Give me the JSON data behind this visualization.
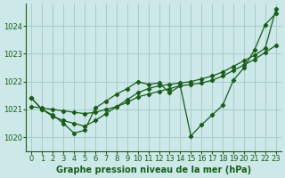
{
  "title": "Graphe pression niveau de la mer (hPa)",
  "bg_color": "#cce8e8",
  "grid_color": "#aacccc",
  "line_color": "#1a5c1a",
  "xlim": [
    -0.5,
    23.5
  ],
  "ylim": [
    1019.5,
    1024.8
  ],
  "yticks": [
    1020,
    1021,
    1022,
    1023,
    1024
  ],
  "xticks": [
    0,
    1,
    2,
    3,
    4,
    5,
    6,
    7,
    8,
    9,
    10,
    11,
    12,
    13,
    14,
    15,
    16,
    17,
    18,
    19,
    20,
    21,
    22,
    23
  ],
  "series": [
    {
      "x": [
        0,
        1,
        2,
        3,
        4,
        5,
        6,
        7,
        8,
        9,
        10,
        11,
        12,
        13,
        14,
        15,
        16,
        17,
        18,
        19,
        20,
        21,
        22,
        23
      ],
      "y": [
        1021.4,
        1021.0,
        1020.8,
        1020.5,
        1020.15,
        1020.25,
        1021.05,
        1021.3,
        1021.55,
        1021.75,
        1022.0,
        1021.9,
        1021.95,
        1021.6,
        1021.85,
        1020.05,
        1020.45,
        1020.8,
        1021.15,
        1022.05,
        1022.5,
        1023.15,
        1024.05,
        1024.45
      ],
      "marker": "D"
    },
    {
      "x": [
        0,
        1,
        2,
        3,
        4,
        5,
        6,
        7,
        8,
        9,
        10,
        11,
        12,
        13,
        14,
        15,
        16,
        17,
        18,
        19,
        20,
        21,
        22,
        23
      ],
      "y": [
        1021.1,
        1021.05,
        1021.0,
        1020.95,
        1020.9,
        1020.85,
        1020.9,
        1021.0,
        1021.1,
        1021.25,
        1021.45,
        1021.55,
        1021.65,
        1021.75,
        1021.85,
        1021.9,
        1021.95,
        1022.05,
        1022.2,
        1022.4,
        1022.6,
        1022.8,
        1023.05,
        1023.3
      ],
      "marker": "D"
    },
    {
      "x": [
        0,
        1,
        2,
        3,
        4,
        5,
        6,
        7,
        8,
        9,
        10,
        11,
        12,
        13,
        14,
        15,
        16,
        17,
        18,
        19,
        20,
        21,
        22,
        23
      ],
      "y": [
        1021.4,
        1021.0,
        1020.75,
        1020.6,
        1020.5,
        1020.4,
        1020.6,
        1020.85,
        1021.1,
        1021.35,
        1021.6,
        1021.75,
        1021.85,
        1021.9,
        1021.95,
        1022.0,
        1022.1,
        1022.2,
        1022.35,
        1022.55,
        1022.75,
        1022.95,
        1023.2,
        1024.6
      ],
      "marker": "D"
    }
  ],
  "xlabel_fontsize": 7.0,
  "tick_fontsize": 6.0
}
